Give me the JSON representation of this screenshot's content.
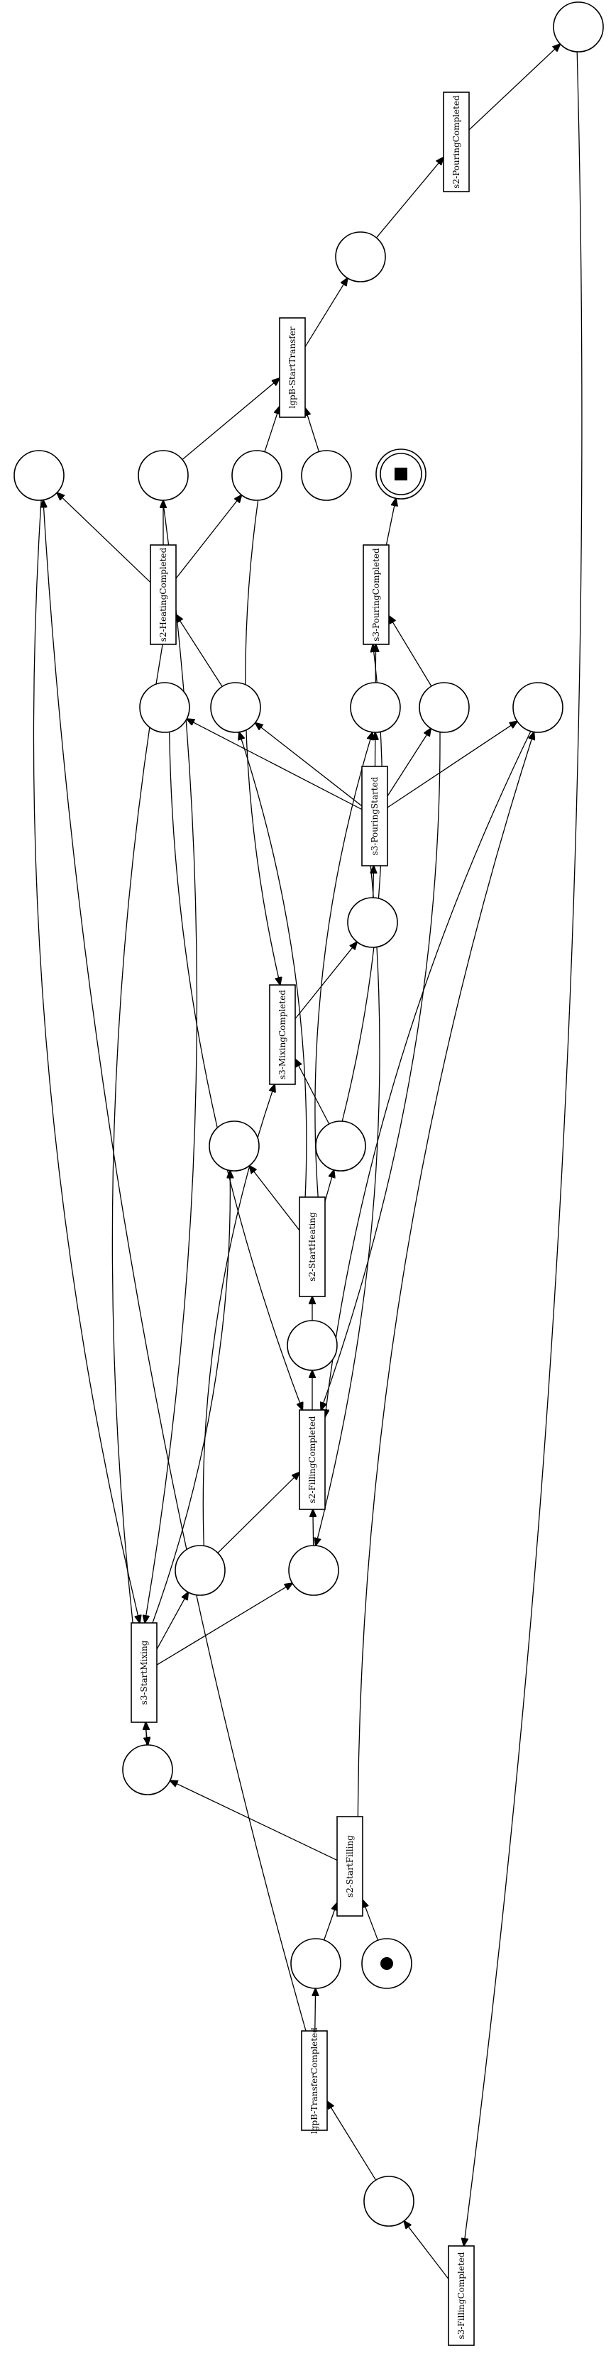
{
  "diagram": {
    "type": "petri-net",
    "transitions": [
      {
        "id": "s2-PouringCompleted",
        "label": "s2-PouringCompleted"
      },
      {
        "id": "lgpB-StartTransfer",
        "label": "lgpB-StartTransfer"
      },
      {
        "id": "s2-HeatingCompleted",
        "label": "s2-HeatingCompleted"
      },
      {
        "id": "s3-PouringCompleted",
        "label": "s3-PouringCompleted"
      },
      {
        "id": "s3-PouringStarted",
        "label": "s3-PouringStarted"
      },
      {
        "id": "s3-MixingCompleted",
        "label": "s3-MixingCompleted"
      },
      {
        "id": "s2-StartHeating",
        "label": "s2-StartHeating"
      },
      {
        "id": "s2-FillingCompleted",
        "label": "s2-FillingCompleted"
      },
      {
        "id": "s3-StartMixing",
        "label": "s3-StartMixing"
      },
      {
        "id": "s2-StartFilling",
        "label": "s2-StartFilling"
      },
      {
        "id": "lgpB-TransferCompleted",
        "label": "lgpB-TransferCompleted"
      },
      {
        "id": "s3-FillingCompleted",
        "label": "s3-FillingCompleted"
      }
    ],
    "places": [
      {
        "id": "p_top"
      },
      {
        "id": "p_after_transfer"
      },
      {
        "id": "p_row6_a"
      },
      {
        "id": "p_row6_b"
      },
      {
        "id": "p_row6_c"
      },
      {
        "id": "p_row6_d"
      },
      {
        "id": "p_final",
        "final": true
      },
      {
        "id": "p_row9_a"
      },
      {
        "id": "p_row9_b"
      },
      {
        "id": "p_row9_c"
      },
      {
        "id": "p_row9_d"
      },
      {
        "id": "p_row9_e"
      },
      {
        "id": "p_row12"
      },
      {
        "id": "p_row15_a"
      },
      {
        "id": "p_row15_b"
      },
      {
        "id": "p_row18"
      },
      {
        "id": "p_row21_a"
      },
      {
        "id": "p_row21_b"
      },
      {
        "id": "p_row24"
      },
      {
        "id": "p_row26_a"
      },
      {
        "id": "p_row26_b",
        "initial": true
      },
      {
        "id": "p_row30"
      }
    ],
    "arcs": [
      {
        "from": "p_top",
        "to": "s3-FillingCompleted"
      },
      {
        "from": "s2-PouringCompleted",
        "to": "p_top"
      },
      {
        "from": "p_after_transfer",
        "to": "s2-PouringCompleted"
      },
      {
        "from": "lgpB-StartTransfer",
        "to": "p_after_transfer"
      },
      {
        "from": "p_row6_b",
        "to": "lgpB-StartTransfer"
      },
      {
        "from": "p_row6_c",
        "to": "lgpB-StartTransfer"
      },
      {
        "from": "p_row6_d",
        "to": "lgpB-StartTransfer"
      },
      {
        "from": "s2-HeatingCompleted",
        "to": "p_row6_a"
      },
      {
        "from": "s2-HeatingCompleted",
        "to": "p_row6_b"
      },
      {
        "from": "s2-HeatingCompleted",
        "to": "p_row6_c"
      },
      {
        "from": "s3-PouringCompleted",
        "to": "p_final"
      },
      {
        "from": "p_row9_b",
        "to": "s2-HeatingCompleted"
      },
      {
        "from": "p_row9_c",
        "to": "s3-PouringCompleted"
      },
      {
        "from": "p_row9_d",
        "to": "s3-PouringCompleted"
      },
      {
        "from": "s3-PouringStarted",
        "to": "p_row9_a"
      },
      {
        "from": "s3-PouringStarted",
        "to": "p_row9_b"
      },
      {
        "from": "s3-PouringStarted",
        "to": "p_row9_c"
      },
      {
        "from": "s3-PouringStarted",
        "to": "p_row9_d"
      },
      {
        "from": "s3-PouringStarted",
        "to": "p_row9_e"
      },
      {
        "from": "p_row12",
        "to": "s3-PouringStarted"
      },
      {
        "from": "s3-MixingCompleted",
        "to": "p_row12"
      },
      {
        "from": "p_row6_c",
        "to": "s3-MixingCompleted"
      },
      {
        "from": "p_row15_b",
        "to": "s3-MixingCompleted"
      },
      {
        "from": "p_row21_a",
        "to": "s3-MixingCompleted"
      },
      {
        "from": "s2-StartHeating",
        "to": "p_row15_a"
      },
      {
        "from": "s2-StartHeating",
        "to": "p_row15_b"
      },
      {
        "from": "s2-StartHeating",
        "to": "p_row9_b"
      },
      {
        "from": "s2-StartHeating",
        "to": "p_row9_c"
      },
      {
        "from": "p_row15_b",
        "to": "s3-PouringCompleted"
      },
      {
        "from": "p_row18",
        "to": "s2-StartHeating"
      },
      {
        "from": "s2-FillingCompleted",
        "to": "p_row18"
      },
      {
        "from": "p_row21_a",
        "to": "s2-FillingCompleted"
      },
      {
        "from": "p_row21_b",
        "to": "s2-FillingCompleted"
      },
      {
        "from": "p_row9_a",
        "to": "s2-FillingCompleted"
      },
      {
        "from": "p_row9_d",
        "to": "s2-FillingCompleted"
      },
      {
        "from": "p_row9_e",
        "to": "s2-FillingCompleted"
      },
      {
        "from": "s3-StartMixing",
        "to": "p_row21_a"
      },
      {
        "from": "s3-StartMixing",
        "to": "p_row21_b"
      },
      {
        "from": "s3-StartMixing",
        "to": "p_row15_a"
      },
      {
        "from": "p_row6_a",
        "to": "s3-StartMixing"
      },
      {
        "from": "p_row6_b",
        "to": "s3-StartMixing"
      },
      {
        "from": "p_row24",
        "to": "s3-StartMixing"
      },
      {
        "from": "s2-StartFilling",
        "to": "p_row24"
      },
      {
        "from": "s2-StartFilling",
        "to": "p_row9_e"
      },
      {
        "from": "s3-PouringStarted",
        "to": "p_row21_b"
      },
      {
        "from": "s2-HeatingCompleted",
        "to": "p_row24"
      },
      {
        "from": "p_row26_a",
        "to": "s2-StartFilling"
      },
      {
        "from": "p_row26_b",
        "to": "s2-StartFilling"
      },
      {
        "from": "lgpB-TransferCompleted",
        "to": "p_row26_a"
      },
      {
        "from": "lgpB-TransferCompleted",
        "to": "p_row6_a"
      },
      {
        "from": "p_row30",
        "to": "lgpB-TransferCompleted"
      },
      {
        "from": "s3-FillingCompleted",
        "to": "p_row30"
      }
    ]
  }
}
